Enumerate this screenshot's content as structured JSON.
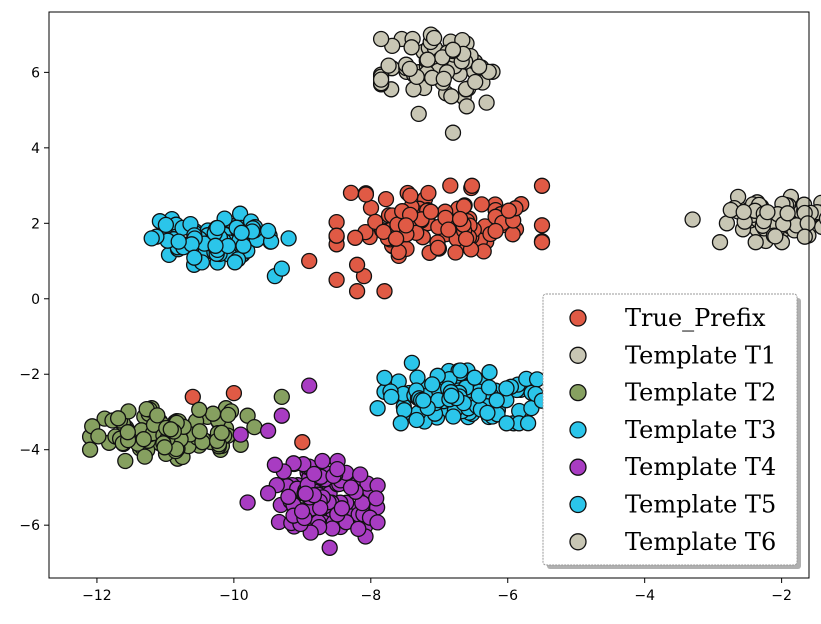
{
  "chart_data": {
    "type": "scatter",
    "title": "",
    "xlabel": "",
    "ylabel": "",
    "xlim": [
      -12.7,
      -1.6
    ],
    "ylim": [
      -7.4,
      7.6
    ],
    "xticks": [
      -12,
      -10,
      -8,
      -6,
      -4,
      -2
    ],
    "yticks": [
      -6,
      -4,
      -2,
      0,
      2,
      4,
      6
    ],
    "xtick_labels": [
      "−12",
      "−10",
      "−8",
      "−6",
      "−4",
      "−2"
    ],
    "ytick_labels": [
      "−6",
      "−4",
      "−2",
      "0",
      "2",
      "4",
      "6"
    ],
    "grid": false,
    "legend_position": "lower-right",
    "series": [
      {
        "name": "True_Prefix",
        "color": "#e05a45",
        "clusters": [
          {
            "center": [
              -7.0,
              2.0
            ],
            "spread": [
              0.75,
              0.5
            ],
            "count": 110,
            "seed": 11
          }
        ],
        "extra_points": [
          [
            -8.9,
            1.0
          ],
          [
            -8.5,
            0.5
          ],
          [
            -8.2,
            0.2
          ],
          [
            -8.1,
            0.6
          ],
          [
            -7.8,
            0.2
          ],
          [
            -8.2,
            0.9
          ],
          [
            -10.6,
            -2.6
          ],
          [
            -10.0,
            -2.5
          ],
          [
            -9.0,
            -3.8
          ]
        ]
      },
      {
        "name": "Template T1",
        "color": "#c8c6b4",
        "clusters": [
          {
            "center": [
              -6.95,
              6.1
            ],
            "spread": [
              0.45,
              0.45
            ],
            "count": 80,
            "seed": 21
          }
        ],
        "extra_points": [
          [
            -7.3,
            4.9
          ],
          [
            -6.8,
            4.4
          ],
          [
            -6.6,
            5.1
          ]
        ]
      },
      {
        "name": "Template T2",
        "color": "#86a060",
        "clusters": [
          {
            "center": [
              -11.0,
              -3.6
            ],
            "spread": [
              0.55,
              0.35
            ],
            "count": 120,
            "seed": 31
          }
        ],
        "extra_points": [
          [
            -9.8,
            -3.1
          ],
          [
            -9.7,
            -3.4
          ],
          [
            -9.3,
            -2.6
          ],
          [
            -12.1,
            -4.0
          ]
        ]
      },
      {
        "name": "Template T3",
        "color": "#2bc5ea",
        "clusters": [
          {
            "center": [
              -6.6,
              -2.6
            ],
            "spread": [
              0.6,
              0.35
            ],
            "count": 120,
            "seed": 41
          }
        ],
        "extra_points": [
          [
            -7.9,
            -2.9
          ],
          [
            -7.7,
            -2.6
          ],
          [
            -7.4,
            -1.7
          ],
          [
            -5.5,
            -2.7
          ]
        ]
      },
      {
        "name": "Template T4",
        "color": "#a83cc2",
        "clusters": [
          {
            "center": [
              -8.7,
              -5.3
            ],
            "spread": [
              0.4,
              0.5
            ],
            "count": 120,
            "seed": 51
          }
        ],
        "extra_points": [
          [
            -8.9,
            -2.3
          ],
          [
            -9.3,
            -3.1
          ],
          [
            -9.5,
            -3.5
          ],
          [
            -9.9,
            -3.6
          ],
          [
            -9.4,
            -4.4
          ],
          [
            -9.8,
            -5.4
          ],
          [
            -8.6,
            -6.6
          ]
        ]
      },
      {
        "name": "Template T5",
        "color": "#2bc5ea",
        "clusters": [
          {
            "center": [
              -10.3,
              1.6
            ],
            "spread": [
              0.45,
              0.35
            ],
            "count": 100,
            "seed": 61
          }
        ],
        "extra_points": [
          [
            -9.5,
            1.8
          ],
          [
            -9.2,
            1.6
          ],
          [
            -9.4,
            0.6
          ],
          [
            -9.3,
            0.8
          ],
          [
            -11.2,
            1.6
          ]
        ]
      },
      {
        "name": "Template T6",
        "color": "#c8c6b4",
        "clusters": [
          {
            "center": [
              -2.0,
              2.1
            ],
            "spread": [
              0.45,
              0.3
            ],
            "count": 90,
            "seed": 71
          }
        ],
        "extra_points": [
          [
            -3.3,
            2.1
          ],
          [
            -1.2,
            1.6
          ],
          [
            -1.2,
            2.1
          ]
        ]
      }
    ]
  }
}
